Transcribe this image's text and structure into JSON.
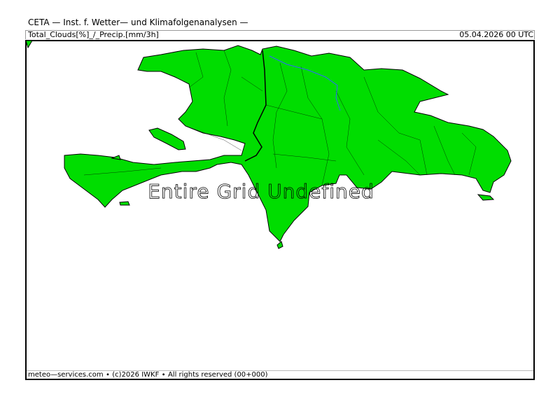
{
  "header": {
    "title": "CETA — Inst. f. Wetter— und Klimafolgenanalysen —",
    "parameter": "Total_Clouds[%]_/_Precip.[mm/3h]",
    "datetime": "05.04.2026  00 UTC"
  },
  "map": {
    "region": "Hispaniola",
    "overlay_text": "Entire Grid Undefined",
    "land_color": "#00dd00",
    "border_color": "#000000",
    "river_color": "#3366ff"
  },
  "footer": {
    "credit": "meteo—services.com ∙ (c)2026 IWKF ∙ All rights reserved (00+000)"
  }
}
